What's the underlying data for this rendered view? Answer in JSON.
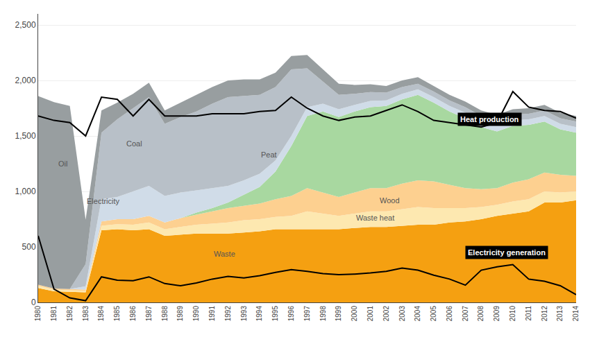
{
  "chart_data": {
    "type": "area",
    "stacked": true,
    "x": [
      1980,
      1981,
      1982,
      1983,
      1984,
      1985,
      1986,
      1987,
      1988,
      1989,
      1990,
      1991,
      1992,
      1993,
      1994,
      1995,
      1996,
      1997,
      1998,
      1999,
      2000,
      2001,
      2002,
      2003,
      2004,
      2005,
      2006,
      2007,
      2008,
      2009,
      2010,
      2011,
      2012,
      2013,
      2014
    ],
    "series": [
      {
        "name": "Waste",
        "color": "#f5a011",
        "values": [
          130,
          100,
          95,
          90,
          650,
          660,
          650,
          660,
          600,
          610,
          620,
          620,
          620,
          630,
          640,
          660,
          660,
          660,
          660,
          660,
          670,
          680,
          680,
          690,
          700,
          700,
          720,
          730,
          750,
          780,
          800,
          820,
          900,
          900,
          920
        ]
      },
      {
        "name": "Waste heat",
        "color": "#fde8b0",
        "values": [
          20,
          15,
          15,
          15,
          40,
          45,
          50,
          60,
          60,
          70,
          80,
          90,
          100,
          110,
          110,
          110,
          120,
          160,
          140,
          120,
          130,
          140,
          140,
          150,
          160,
          150,
          130,
          120,
          110,
          100,
          110,
          110,
          100,
          90,
          80
        ]
      },
      {
        "name": "Wood",
        "color": "#fdd090",
        "values": [
          10,
          10,
          10,
          10,
          40,
          45,
          50,
          60,
          60,
          80,
          90,
          110,
          130,
          130,
          140,
          160,
          180,
          210,
          190,
          170,
          190,
          210,
          210,
          230,
          240,
          240,
          210,
          180,
          160,
          150,
          170,
          180,
          170,
          160,
          140
        ]
      },
      {
        "name": "Peat",
        "color": "#a8d8a0",
        "values": [
          0,
          0,
          0,
          0,
          0,
          0,
          0,
          0,
          0,
          0,
          20,
          30,
          50,
          100,
          150,
          250,
          450,
          650,
          730,
          720,
          730,
          730,
          740,
          760,
          770,
          710,
          660,
          630,
          560,
          510,
          510,
          490,
          460,
          410,
          390
        ]
      },
      {
        "name": "Electricity",
        "color": "#d0dce8",
        "values": [
          0,
          0,
          0,
          30,
          200,
          200,
          250,
          270,
          240,
          230,
          200,
          180,
          150,
          130,
          120,
          100,
          90,
          80,
          70,
          70,
          60,
          55,
          50,
          50,
          50,
          50,
          50,
          50,
          50,
          50,
          50,
          50,
          50,
          50,
          50
        ]
      },
      {
        "name": "Coal",
        "color": "#b8c0c8",
        "values": [
          0,
          0,
          0,
          200,
          600,
          700,
          750,
          800,
          650,
          680,
          710,
          760,
          800,
          760,
          710,
          660,
          600,
          350,
          200,
          130,
          100,
          80,
          70,
          60,
          50,
          50,
          50,
          50,
          50,
          50,
          50,
          50,
          50,
          50,
          50
        ]
      },
      {
        "name": "Oil",
        "color": "#989ea0",
        "values": [
          1700,
          1680,
          1650,
          400,
          200,
          150,
          130,
          130,
          120,
          130,
          150,
          150,
          150,
          150,
          140,
          130,
          120,
          120,
          110,
          100,
          80,
          70,
          60,
          60,
          60,
          50,
          50,
          50,
          50,
          50,
          50,
          50,
          50,
          50,
          50
        ]
      },
      {
        "name": "Heat production",
        "type": "line",
        "color": "#000000",
        "values": [
          1680,
          1640,
          1620,
          1500,
          1850,
          1830,
          1680,
          1830,
          1680,
          1680,
          1680,
          1700,
          1700,
          1700,
          1720,
          1730,
          1850,
          1750,
          1680,
          1640,
          1670,
          1680,
          1730,
          1780,
          1720,
          1640,
          1620,
          1600,
          1580,
          1620,
          1900,
          1760,
          1730,
          1720,
          1660
        ]
      },
      {
        "name": "Electricity generation",
        "type": "line",
        "color": "#000000",
        "values": [
          600,
          120,
          40,
          15,
          230,
          200,
          195,
          230,
          170,
          150,
          175,
          210,
          235,
          220,
          240,
          270,
          295,
          280,
          260,
          250,
          255,
          265,
          280,
          310,
          290,
          245,
          210,
          155,
          290,
          320,
          340,
          210,
          190,
          150,
          70
        ]
      }
    ],
    "annotations": [
      {
        "text": "Oil",
        "x": 1981.2,
        "y": 1200,
        "color": "#555555"
      },
      {
        "text": "Coal",
        "x": 1985.5,
        "y": 1380,
        "color": "#555555"
      },
      {
        "text": "Electricity",
        "x": 1983.0,
        "y": 860,
        "color": "#555555"
      },
      {
        "text": "Peat",
        "x": 1994.0,
        "y": 1280,
        "color": "#555555"
      },
      {
        "text": "Wood",
        "x": 2001.5,
        "y": 870,
        "color": "#555555"
      },
      {
        "text": "Waste heat",
        "x": 2000.0,
        "y": 710,
        "color": "#555555"
      },
      {
        "text": "Waste",
        "x": 1991.0,
        "y": 390,
        "color": "#555555"
      },
      {
        "text": "Heat production",
        "x": 2006.5,
        "y": 1590,
        "color": "#ffffff"
      },
      {
        "text": "Electricity generation",
        "x": 2007.0,
        "y": 390,
        "color": "#ffffff"
      }
    ],
    "xlim": [
      1980,
      2014
    ],
    "xticks": [
      1980,
      1981,
      1982,
      1983,
      1984,
      1985,
      1986,
      1987,
      1988,
      1989,
      1990,
      1991,
      1992,
      1993,
      1994,
      1995,
      1996,
      1997,
      1998,
      1999,
      2000,
      2001,
      2002,
      2003,
      2004,
      2005,
      2006,
      2007,
      2008,
      2009,
      2010,
      2011,
      2012,
      2013,
      2014
    ],
    "ylim": [
      0,
      2600
    ],
    "yticks": [
      0,
      500,
      {
        "value": 1000,
        "label": "1,000"
      },
      {
        "value": 1500,
        "label": "1,500"
      },
      {
        "value": 2000,
        "label": "2,000"
      },
      {
        "value": 2500,
        "label": "2,500"
      }
    ],
    "grid": true
  }
}
